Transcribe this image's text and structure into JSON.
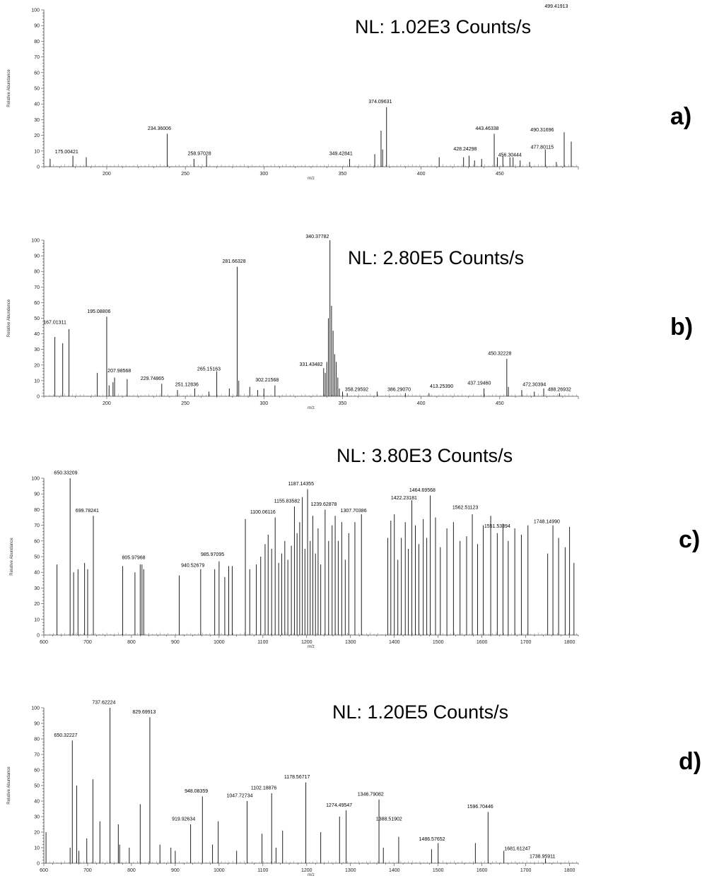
{
  "chart_data": [
    {
      "type": "bar",
      "panel_label": "a)",
      "annotation": "NL: 1.02E3 Counts/s",
      "xlabel": "m/z",
      "ylabel": "Relative Abundance",
      "xlim": [
        160,
        500
      ],
      "ylim": [
        0,
        100
      ],
      "xticks": [
        200,
        250,
        300,
        350,
        400,
        450
      ],
      "yticks": [
        0,
        10,
        20,
        30,
        40,
        50,
        60,
        70,
        80,
        90,
        100
      ],
      "peaks": [
        {
          "x": 164.0,
          "y": 5
        },
        {
          "x": 178.5,
          "y": 7
        },
        {
          "x": 187.0,
          "y": 6
        },
        {
          "x": 238.5,
          "y": 21
        },
        {
          "x": 255.5,
          "y": 5
        },
        {
          "x": 263.5,
          "y": 7
        },
        {
          "x": 354.5,
          "y": 5
        },
        {
          "x": 370.5,
          "y": 8
        },
        {
          "x": 374.5,
          "y": 23
        },
        {
          "x": 375.5,
          "y": 11
        },
        {
          "x": 378.0,
          "y": 38
        },
        {
          "x": 411.5,
          "y": 6
        },
        {
          "x": 427.0,
          "y": 6
        },
        {
          "x": 430.5,
          "y": 7
        },
        {
          "x": 434.0,
          "y": 4
        },
        {
          "x": 438.5,
          "y": 5
        },
        {
          "x": 446.5,
          "y": 21
        },
        {
          "x": 448.5,
          "y": 6
        },
        {
          "x": 452.0,
          "y": 7
        },
        {
          "x": 456.5,
          "y": 6
        },
        {
          "x": 458.5,
          "y": 6
        },
        {
          "x": 463.0,
          "y": 4
        },
        {
          "x": 469.0,
          "y": 3
        },
        {
          "x": 479.0,
          "y": 11
        },
        {
          "x": 486.0,
          "y": 3
        },
        {
          "x": 491.0,
          "y": 22
        },
        {
          "x": 495.5,
          "y": 16
        }
      ],
      "labels": [
        {
          "text": "175.00421",
          "x": 174.5,
          "y": 8
        },
        {
          "text": "234.36006",
          "x": 233.5,
          "y": 23
        },
        {
          "text": "258.97028",
          "x": 259.0,
          "y": 7
        },
        {
          "text": "374.09631",
          "x": 374.0,
          "y": 40
        },
        {
          "text": "349.42841",
          "x": 349.0,
          "y": 7
        },
        {
          "text": "428.24298",
          "x": 428.0,
          "y": 10
        },
        {
          "text": "443.46338",
          "x": 442.0,
          "y": 23
        },
        {
          "text": "456.30444",
          "x": 456.5,
          "y": 6
        },
        {
          "text": "477.80115",
          "x": 477.0,
          "y": 11
        },
        {
          "text": "490.31696",
          "x": 477.0,
          "y": 22
        },
        {
          "text": "499.41913",
          "x": 486.0,
          "y": 101
        }
      ]
    },
    {
      "type": "bar",
      "panel_label": "b)",
      "annotation": "NL: 2.80E5 Counts/s",
      "xlabel": "m/z",
      "ylabel": "Relative Abundance",
      "xlim": [
        160,
        500
      ],
      "ylim": [
        0,
        100
      ],
      "xticks": [
        200,
        250,
        300,
        350,
        400,
        450
      ],
      "yticks": [
        0,
        10,
        20,
        30,
        40,
        50,
        60,
        70,
        80,
        90,
        100
      ],
      "peaks": [
        {
          "x": 167.0,
          "y": 38
        },
        {
          "x": 172.0,
          "y": 34
        },
        {
          "x": 176.0,
          "y": 43
        },
        {
          "x": 194.0,
          "y": 15
        },
        {
          "x": 200.0,
          "y": 51
        },
        {
          "x": 201.5,
          "y": 7
        },
        {
          "x": 204.0,
          "y": 9
        },
        {
          "x": 205.0,
          "y": 12
        },
        {
          "x": 213.0,
          "y": 11
        },
        {
          "x": 235.0,
          "y": 8
        },
        {
          "x": 245.0,
          "y": 4
        },
        {
          "x": 256.0,
          "y": 5
        },
        {
          "x": 265.0,
          "y": 3
        },
        {
          "x": 270.0,
          "y": 16
        },
        {
          "x": 278.0,
          "y": 5
        },
        {
          "x": 283.0,
          "y": 83
        },
        {
          "x": 284.0,
          "y": 10
        },
        {
          "x": 291.0,
          "y": 6
        },
        {
          "x": 296.0,
          "y": 4
        },
        {
          "x": 300.0,
          "y": 5
        },
        {
          "x": 307.0,
          "y": 7
        },
        {
          "x": 338.0,
          "y": 18
        },
        {
          "x": 339.0,
          "y": 15
        },
        {
          "x": 340.0,
          "y": 22
        },
        {
          "x": 341.0,
          "y": 50
        },
        {
          "x": 342.0,
          "y": 100
        },
        {
          "x": 343.0,
          "y": 58
        },
        {
          "x": 344.0,
          "y": 42
        },
        {
          "x": 345.0,
          "y": 27
        },
        {
          "x": 346.0,
          "y": 22
        },
        {
          "x": 347.0,
          "y": 12
        },
        {
          "x": 348.0,
          "y": 5
        },
        {
          "x": 350.0,
          "y": 3
        },
        {
          "x": 353.0,
          "y": 2
        },
        {
          "x": 372.0,
          "y": 3
        },
        {
          "x": 390.0,
          "y": 2
        },
        {
          "x": 405.0,
          "y": 2
        },
        {
          "x": 440.0,
          "y": 5
        },
        {
          "x": 454.5,
          "y": 24
        },
        {
          "x": 455.5,
          "y": 6
        },
        {
          "x": 464.0,
          "y": 4
        },
        {
          "x": 472.0,
          "y": 3
        },
        {
          "x": 478.0,
          "y": 5
        },
        {
          "x": 488.0,
          "y": 2
        }
      ],
      "labels": [
        {
          "text": "167.01311",
          "x": 167.0,
          "y": 46
        },
        {
          "text": "195.08806",
          "x": 195.0,
          "y": 53
        },
        {
          "text": "207.98568",
          "x": 208.0,
          "y": 15
        },
        {
          "text": "229.74865",
          "x": 229.0,
          "y": 10
        },
        {
          "text": "251.12836",
          "x": 251.0,
          "y": 6
        },
        {
          "text": "265.15163",
          "x": 265.0,
          "y": 16
        },
        {
          "text": "281.66328",
          "x": 281.0,
          "y": 85
        },
        {
          "text": "302.21568",
          "x": 302.0,
          "y": 9
        },
        {
          "text": "331.43482",
          "x": 330.0,
          "y": 19
        },
        {
          "text": "340.37782",
          "x": 334.0,
          "y": 101
        },
        {
          "text": "358.29592",
          "x": 359.0,
          "y": 3
        },
        {
          "text": "386.29070",
          "x": 386.0,
          "y": 3
        },
        {
          "text": "413.25390",
          "x": 413.0,
          "y": 5
        },
        {
          "text": "437.19460",
          "x": 437.0,
          "y": 7
        },
        {
          "text": "450.32228",
          "x": 450.0,
          "y": 26
        },
        {
          "text": "472.30394",
          "x": 472.0,
          "y": 6
        },
        {
          "text": "488.26932",
          "x": 488.0,
          "y": 3
        }
      ]
    },
    {
      "type": "bar",
      "panel_label": "c)",
      "annotation": "NL: 3.80E3 Counts/s",
      "xlabel": "m/z",
      "ylabel": "Relative Abundance",
      "xlim": [
        600,
        1820
      ],
      "ylim": [
        0,
        100
      ],
      "xticks": [
        600,
        700,
        800,
        900,
        1000,
        1100,
        1200,
        1300,
        1400,
        1500,
        1600,
        1700,
        1800
      ],
      "yticks": [
        0,
        10,
        20,
        30,
        40,
        50,
        60,
        70,
        80,
        90,
        100
      ],
      "peaks": [
        {
          "x": 630,
          "y": 45
        },
        {
          "x": 660,
          "y": 100
        },
        {
          "x": 668,
          "y": 40
        },
        {
          "x": 678,
          "y": 42
        },
        {
          "x": 693,
          "y": 46
        },
        {
          "x": 700,
          "y": 42
        },
        {
          "x": 713,
          "y": 76
        },
        {
          "x": 780,
          "y": 44
        },
        {
          "x": 808,
          "y": 40
        },
        {
          "x": 820,
          "y": 45
        },
        {
          "x": 824,
          "y": 45
        },
        {
          "x": 828,
          "y": 42
        },
        {
          "x": 909,
          "y": 38
        },
        {
          "x": 958,
          "y": 42
        },
        {
          "x": 990,
          "y": 42
        },
        {
          "x": 1000,
          "y": 47
        },
        {
          "x": 1013,
          "y": 37
        },
        {
          "x": 1022,
          "y": 44
        },
        {
          "x": 1030,
          "y": 44
        },
        {
          "x": 1060,
          "y": 74
        },
        {
          "x": 1070,
          "y": 42
        },
        {
          "x": 1085,
          "y": 45
        },
        {
          "x": 1095,
          "y": 50
        },
        {
          "x": 1105,
          "y": 58
        },
        {
          "x": 1112,
          "y": 64
        },
        {
          "x": 1120,
          "y": 55
        },
        {
          "x": 1128,
          "y": 75
        },
        {
          "x": 1136,
          "y": 46
        },
        {
          "x": 1143,
          "y": 52
        },
        {
          "x": 1150,
          "y": 60
        },
        {
          "x": 1157,
          "y": 48
        },
        {
          "x": 1165,
          "y": 57
        },
        {
          "x": 1172,
          "y": 82
        },
        {
          "x": 1178,
          "y": 65
        },
        {
          "x": 1184,
          "y": 72
        },
        {
          "x": 1190,
          "y": 88
        },
        {
          "x": 1196,
          "y": 55
        },
        {
          "x": 1202,
          "y": 93
        },
        {
          "x": 1208,
          "y": 60
        },
        {
          "x": 1214,
          "y": 76
        },
        {
          "x": 1220,
          "y": 52
        },
        {
          "x": 1226,
          "y": 68
        },
        {
          "x": 1232,
          "y": 45
        },
        {
          "x": 1242,
          "y": 80
        },
        {
          "x": 1250,
          "y": 60
        },
        {
          "x": 1258,
          "y": 70
        },
        {
          "x": 1265,
          "y": 76
        },
        {
          "x": 1272,
          "y": 60
        },
        {
          "x": 1280,
          "y": 72
        },
        {
          "x": 1288,
          "y": 48
        },
        {
          "x": 1296,
          "y": 65
        },
        {
          "x": 1310,
          "y": 72
        },
        {
          "x": 1325,
          "y": 77
        },
        {
          "x": 1385,
          "y": 62
        },
        {
          "x": 1392,
          "y": 73
        },
        {
          "x": 1400,
          "y": 77
        },
        {
          "x": 1408,
          "y": 48
        },
        {
          "x": 1416,
          "y": 62
        },
        {
          "x": 1425,
          "y": 72
        },
        {
          "x": 1432,
          "y": 55
        },
        {
          "x": 1440,
          "y": 86
        },
        {
          "x": 1448,
          "y": 70
        },
        {
          "x": 1456,
          "y": 58
        },
        {
          "x": 1466,
          "y": 74
        },
        {
          "x": 1474,
          "y": 62
        },
        {
          "x": 1482,
          "y": 89
        },
        {
          "x": 1494,
          "y": 75
        },
        {
          "x": 1505,
          "y": 56
        },
        {
          "x": 1520,
          "y": 68
        },
        {
          "x": 1535,
          "y": 72
        },
        {
          "x": 1550,
          "y": 60
        },
        {
          "x": 1565,
          "y": 63
        },
        {
          "x": 1578,
          "y": 77
        },
        {
          "x": 1590,
          "y": 58
        },
        {
          "x": 1603,
          "y": 70
        },
        {
          "x": 1620,
          "y": 76
        },
        {
          "x": 1635,
          "y": 65
        },
        {
          "x": 1648,
          "y": 71
        },
        {
          "x": 1660,
          "y": 60
        },
        {
          "x": 1675,
          "y": 68
        },
        {
          "x": 1690,
          "y": 64
        },
        {
          "x": 1705,
          "y": 70
        },
        {
          "x": 1750,
          "y": 52
        },
        {
          "x": 1762,
          "y": 70
        },
        {
          "x": 1775,
          "y": 62
        },
        {
          "x": 1790,
          "y": 56
        },
        {
          "x": 1800,
          "y": 69
        },
        {
          "x": 1810,
          "y": 46
        }
      ],
      "labels": [
        {
          "text": "650.33209",
          "x": 650,
          "y": 102
        },
        {
          "text": "699.78241",
          "x": 699,
          "y": 78
        },
        {
          "text": "805.97968",
          "x": 805,
          "y": 48
        },
        {
          "text": "940.52679",
          "x": 940,
          "y": 43
        },
        {
          "text": "985.97095",
          "x": 985,
          "y": 50
        },
        {
          "text": "1100.06116",
          "x": 1100,
          "y": 77
        },
        {
          "text": "1155.83582",
          "x": 1155,
          "y": 84
        },
        {
          "text": "1187.14355",
          "x": 1187,
          "y": 95
        },
        {
          "text": "1239.62878",
          "x": 1239,
          "y": 82
        },
        {
          "text": "1307.70386",
          "x": 1307,
          "y": 78
        },
        {
          "text": "1422.23181",
          "x": 1422,
          "y": 86
        },
        {
          "text": "1464.69568",
          "x": 1464,
          "y": 91
        },
        {
          "text": "1562.51123",
          "x": 1562,
          "y": 80
        },
        {
          "text": "1551.53394",
          "x": 1635,
          "y": 68
        },
        {
          "text": "1748.14990",
          "x": 1748,
          "y": 71
        }
      ]
    },
    {
      "type": "bar",
      "panel_label": "d)",
      "annotation": "NL: 1.20E5 Counts/s",
      "xlabel": "m/z",
      "ylabel": "Relative Abundance",
      "xlim": [
        600,
        1820
      ],
      "ylim": [
        0,
        100
      ],
      "xticks": [
        600,
        700,
        800,
        900,
        1000,
        1100,
        1200,
        1300,
        1400,
        1500,
        1600,
        1700,
        1800
      ],
      "yticks": [
        0,
        10,
        20,
        30,
        40,
        50,
        60,
        70,
        80,
        90,
        100
      ],
      "peaks": [
        {
          "x": 605,
          "y": 20
        },
        {
          "x": 660,
          "y": 10
        },
        {
          "x": 665,
          "y": 79
        },
        {
          "x": 675,
          "y": 50
        },
        {
          "x": 680,
          "y": 8
        },
        {
          "x": 698,
          "y": 16
        },
        {
          "x": 712,
          "y": 54
        },
        {
          "x": 728,
          "y": 27
        },
        {
          "x": 751,
          "y": 100
        },
        {
          "x": 770,
          "y": 25
        },
        {
          "x": 773,
          "y": 12
        },
        {
          "x": 795,
          "y": 10
        },
        {
          "x": 820,
          "y": 38
        },
        {
          "x": 842,
          "y": 94
        },
        {
          "x": 865,
          "y": 12
        },
        {
          "x": 890,
          "y": 10
        },
        {
          "x": 900,
          "y": 8
        },
        {
          "x": 935,
          "y": 25
        },
        {
          "x": 962,
          "y": 43
        },
        {
          "x": 985,
          "y": 12
        },
        {
          "x": 998,
          "y": 27
        },
        {
          "x": 1040,
          "y": 8
        },
        {
          "x": 1064,
          "y": 40
        },
        {
          "x": 1098,
          "y": 19
        },
        {
          "x": 1120,
          "y": 45
        },
        {
          "x": 1130,
          "y": 10
        },
        {
          "x": 1145,
          "y": 21
        },
        {
          "x": 1198,
          "y": 52
        },
        {
          "x": 1232,
          "y": 20
        },
        {
          "x": 1275,
          "y": 30
        },
        {
          "x": 1290,
          "y": 34
        },
        {
          "x": 1365,
          "y": 41
        },
        {
          "x": 1375,
          "y": 10
        },
        {
          "x": 1410,
          "y": 17
        },
        {
          "x": 1485,
          "y": 9
        },
        {
          "x": 1500,
          "y": 13
        },
        {
          "x": 1585,
          "y": 13
        },
        {
          "x": 1614,
          "y": 33
        },
        {
          "x": 1650,
          "y": 8
        },
        {
          "x": 1745,
          "y": 3
        }
      ],
      "labels": [
        {
          "text": "650.32227",
          "x": 650,
          "y": 81
        },
        {
          "text": "737.62224",
          "x": 737,
          "y": 102
        },
        {
          "text": "829.69913",
          "x": 829,
          "y": 96
        },
        {
          "text": "919.92634",
          "x": 919,
          "y": 27
        },
        {
          "text": "948.08359",
          "x": 948,
          "y": 45
        },
        {
          "text": "1047.72734",
          "x": 1047,
          "y": 42
        },
        {
          "text": "1102.18876",
          "x": 1102,
          "y": 47
        },
        {
          "text": "1178.56717",
          "x": 1178,
          "y": 54
        },
        {
          "text": "1274.49547",
          "x": 1274,
          "y": 36
        },
        {
          "text": "1346.79082",
          "x": 1346,
          "y": 43
        },
        {
          "text": "1388.51902",
          "x": 1388,
          "y": 27
        },
        {
          "text": "1486.57652",
          "x": 1486,
          "y": 14
        },
        {
          "text": "1596.70446",
          "x": 1596,
          "y": 35
        },
        {
          "text": "1681.61247",
          "x": 1681,
          "y": 8
        },
        {
          "text": "1738.95911",
          "x": 1738,
          "y": 3
        }
      ]
    }
  ]
}
